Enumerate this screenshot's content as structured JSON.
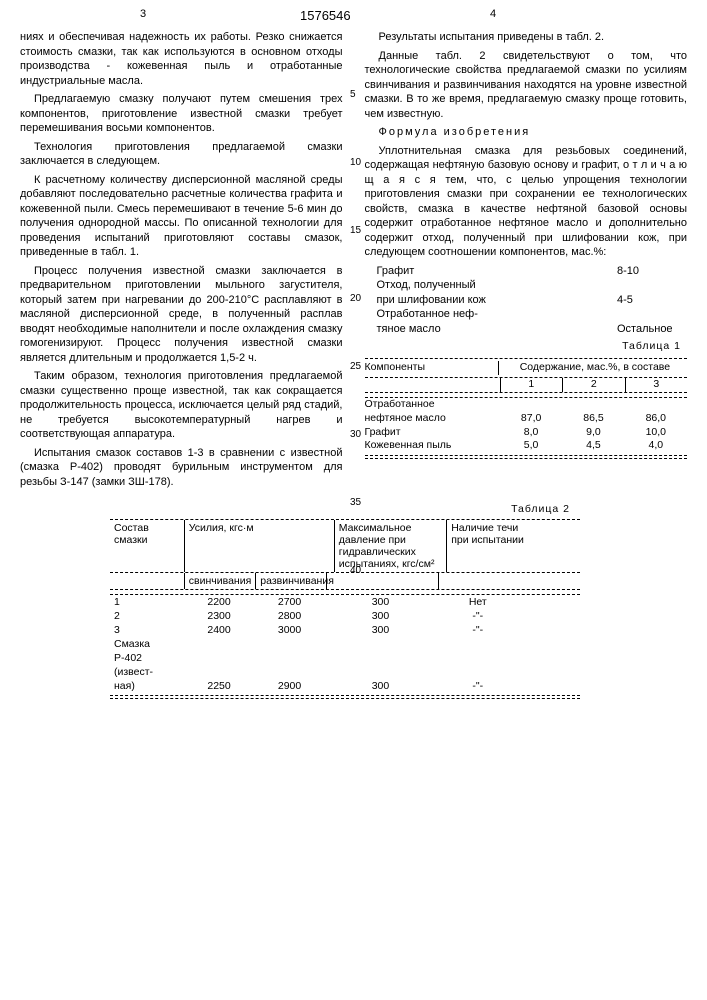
{
  "header": {
    "page_left": "3",
    "page_right": "4",
    "doc_number": "1576546"
  },
  "line_numbers": [
    "5",
    "10",
    "15",
    "20",
    "25",
    "30",
    "35",
    "40"
  ],
  "left_column": {
    "p1": "ниях и обеспечивая надежность их работы. Резко снижается стоимость смазки, так как используются в основном отходы производства - кожевенная пыль и отработанные индустриальные масла.",
    "p2": "Предлагаемую смазку получают путем смешения трех компонентов, приготовление известной смазки требует перемешивания восьми компонентов.",
    "p3": "Технология приготовления предлагаемой смазки заключается в следующем.",
    "p4": "К расчетному количеству дисперсионной масляной среды добавляют последовательно расчетные количества графита и кожевенной пыли. Смесь перемешивают в течение 5-6 мин до получения однородной массы. По описанной технологии для проведения испытаний приготовляют составы смазок, приведенные в табл. 1.",
    "p5": "Процесс получения известной смазки заключается в предварительном приготовлении мыльного загустителя, который затем при нагревании до 200-210°С расплавляют в масляной дисперсионной среде, в полученный расплав вводят необходимые наполнители и после охлаждения смазку гомогенизируют. Процесс получения известной смазки является длительным и продолжается 1,5-2 ч.",
    "p6": "Таким образом, технология приготовления предлагаемой смазки существенно проще известной, так как сокращается продолжительность процесса, исключается целый ряд стадий, не требуется высокотемпературный нагрев и соответствующая аппаратура.",
    "p7": "Испытания смазок составов 1-3 в сравнении с известной (смазка Р-402) проводят бурильным инструментом для резьбы З-147 (замки ЗШ-178)."
  },
  "right_column": {
    "p1": "Результаты испытания приведены в табл. 2.",
    "p2": "Данные табл. 2 свидетельствуют о том, что технологические свойства предлагаемой смазки по усилиям свинчивания и развинчивания находятся на уровне известной смазки. В то же время, предлагаемую смазку проще готовить, чем известную.",
    "formula_title": "Формула изобретения",
    "p3": "Уплотнительная смазка для резьбовых соединений, содержащая нефтяную базовую основу и графит, о т л и ч а ю щ а я с я  тем, что, с целью упрощения технологии приготовления смазки при сохранении ее технологических свойств, смазка в качестве нефтяной базовой основы содержит отработанное нефтяное масло и дополнительно содержит отход, полученный при шлифовании кож, при следующем соотношении компонентов, мас.%:",
    "components": [
      {
        "label": "Графит",
        "value": "8-10"
      },
      {
        "label": "Отход, полученный",
        "value": ""
      },
      {
        "label": "при шлифовании кож",
        "value": "4-5"
      },
      {
        "label": "Отработанное неф-",
        "value": ""
      },
      {
        "label": "тяное масло",
        "value": "Остальное"
      }
    ]
  },
  "table1": {
    "title": "Таблица 1",
    "head_c1": "Компоненты",
    "head_c2": "Содержание, мас.%, в составе",
    "sub": [
      "1",
      "2",
      "3"
    ],
    "rows": [
      {
        "name_l1": "Отработанное",
        "name_l2": "нефтяное масло",
        "v": [
          "87,0",
          "86,5",
          "86,0"
        ]
      },
      {
        "name_l1": "Графит",
        "name_l2": "",
        "v": [
          "8,0",
          "9,0",
          "10,0"
        ]
      },
      {
        "name_l1": "Кожевенная пыль",
        "name_l2": "",
        "v": [
          "5,0",
          "4,5",
          "4,0"
        ]
      }
    ]
  },
  "table2": {
    "title": "Таблица 2",
    "head": {
      "c1": "Состав смазки",
      "c2": "Усилия,   кгс·м",
      "c3": "Максимальное давление при гидравлических испытаниях, кгс/см²",
      "c4": "Наличие течи при испытании",
      "sub_a": "свинчивания",
      "sub_b": "развинчивания"
    },
    "rows": [
      {
        "c1": "1",
        "a": "2200",
        "b": "2700",
        "c3": "300",
        "c4": "Нет"
      },
      {
        "c1": "2",
        "a": "2300",
        "b": "2800",
        "c3": "300",
        "c4": "-\"-"
      },
      {
        "c1": "3",
        "a": "2400",
        "b": "3000",
        "c3": "300",
        "c4": "-\"-"
      },
      {
        "c1": "Смазка",
        "a": "",
        "b": "",
        "c3": "",
        "c4": ""
      },
      {
        "c1": "Р-402",
        "a": "",
        "b": "",
        "c3": "",
        "c4": ""
      },
      {
        "c1": "(извест-",
        "a": "",
        "b": "",
        "c3": "",
        "c4": ""
      },
      {
        "c1": "ная)",
        "a": "2250",
        "b": "2900",
        "c3": "300",
        "c4": "-\"-"
      }
    ]
  }
}
